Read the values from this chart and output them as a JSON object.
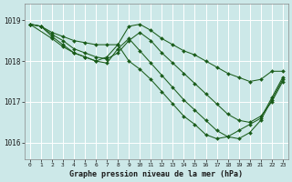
{
  "title": "Graphe pression niveau de la mer (hPa)",
  "bg_color": "#cce8e8",
  "grid_color": "#ffffff",
  "line_color": "#1a5c1a",
  "marker": "D",
  "marker_size": 2.0,
  "xlim": [
    -0.5,
    23.5
  ],
  "ylim": [
    1015.6,
    1019.4
  ],
  "yticks": [
    1016,
    1017,
    1018,
    1019
  ],
  "xticks": [
    0,
    1,
    2,
    3,
    4,
    5,
    6,
    7,
    8,
    9,
    10,
    11,
    12,
    13,
    14,
    15,
    16,
    17,
    18,
    19,
    20,
    21,
    22,
    23
  ],
  "series": [
    {
      "x": [
        0,
        1,
        2,
        3,
        4,
        5,
        6,
        7,
        8,
        9,
        10,
        11,
        12,
        13,
        14,
        15,
        16,
        17,
        18,
        19,
        20,
        21,
        22,
        23
      ],
      "y": [
        1018.9,
        1018.85,
        1018.7,
        1018.6,
        1018.5,
        1018.45,
        1018.4,
        1018.4,
        1018.4,
        1018.85,
        1018.9,
        1018.75,
        1018.55,
        1018.4,
        1018.25,
        1018.15,
        1018.0,
        1017.85,
        1017.7,
        1017.6,
        1017.5,
        1017.55,
        1017.75,
        1017.75
      ]
    },
    {
      "x": [
        0,
        1,
        2,
        3,
        4,
        5,
        6,
        7,
        8,
        9,
        10,
        11,
        12,
        13,
        14,
        15,
        16,
        17,
        18,
        19,
        20,
        21,
        22,
        23
      ],
      "y": [
        1018.9,
        1018.85,
        1018.65,
        1018.5,
        1018.3,
        1018.2,
        1018.1,
        1018.05,
        1018.2,
        1018.5,
        1018.7,
        1018.5,
        1018.2,
        1017.95,
        1017.7,
        1017.45,
        1017.2,
        1016.95,
        1016.7,
        1016.55,
        1016.5,
        1016.65,
        1017.0,
        1017.5
      ]
    },
    {
      "x": [
        0,
        1,
        2,
        3,
        4,
        5,
        6,
        7,
        8,
        9,
        10,
        11,
        12,
        13,
        14,
        15,
        16,
        17,
        18,
        19,
        20,
        21,
        22,
        23
      ],
      "y": [
        1018.9,
        1018.85,
        1018.6,
        1018.4,
        1018.2,
        1018.1,
        1018.0,
        1017.95,
        1018.3,
        1018.55,
        1018.25,
        1017.95,
        1017.65,
        1017.35,
        1017.05,
        1016.8,
        1016.55,
        1016.3,
        1016.15,
        1016.1,
        1016.25,
        1016.55,
        1017.05,
        1017.55
      ]
    },
    {
      "x": [
        0,
        2,
        3,
        4,
        5,
        6,
        7,
        8,
        9,
        10,
        11,
        12,
        13,
        14,
        15,
        16,
        17,
        18,
        19,
        20,
        21,
        22,
        23
      ],
      "y": [
        1018.9,
        1018.55,
        1018.35,
        1018.2,
        1018.1,
        1018.0,
        1018.1,
        1018.4,
        1018.0,
        1017.8,
        1017.55,
        1017.25,
        1016.95,
        1016.65,
        1016.45,
        1016.2,
        1016.1,
        1016.15,
        1016.3,
        1016.45,
        1016.6,
        1017.1,
        1017.6
      ]
    }
  ]
}
